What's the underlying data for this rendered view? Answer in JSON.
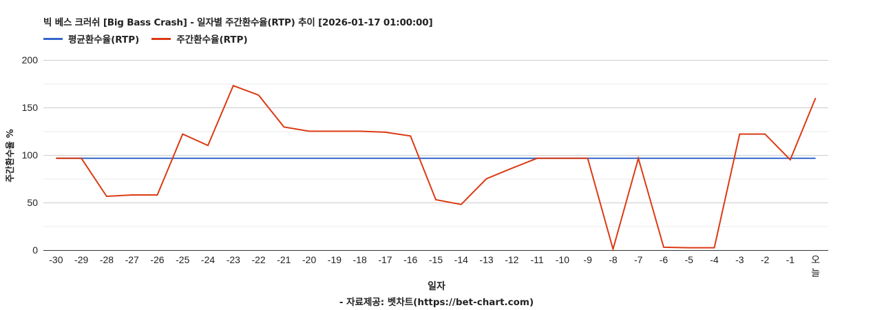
{
  "header": {
    "title": "빅 베스 크러쉬 [Big Bass Crash] - 일자별 주간환수율(RTP) 추이 [2026-01-17 01:00:00]"
  },
  "legend": [
    {
      "label": "평균환수율(RTP)",
      "color": "#3366cc"
    },
    {
      "label": "주간환수율(RTP)",
      "color": "#dc3912"
    }
  ],
  "axes": {
    "ylabel": "주간환수율 %",
    "xlabel": "일자",
    "yticks": [
      "0",
      "50",
      "100",
      "150",
      "200"
    ]
  },
  "footer": {
    "source": "- 자료제공: 벳차트(https://bet-chart.com)"
  },
  "chart_data": {
    "type": "line",
    "title": "빅 베스 크러쉬 [Big Bass Crash] - 일자별 주간환수율(RTP) 추이 [2026-01-17 01:00:00]",
    "xlabel": "일자",
    "ylabel": "주간환수율 %",
    "ylim": [
      0,
      200
    ],
    "yticks": [
      0,
      50,
      100,
      150,
      200
    ],
    "grid": true,
    "legend_position": "top-left",
    "categories": [
      "-30",
      "-29",
      "-28",
      "-27",
      "-26",
      "-25",
      "-24",
      "-23",
      "-22",
      "-21",
      "-20",
      "-19",
      "-18",
      "-17",
      "-16",
      "-15",
      "-14",
      "-13",
      "-12",
      "-11",
      "-10",
      "-9",
      "-8",
      "-7",
      "-6",
      "-5",
      "-4",
      "-3",
      "-2",
      "-1",
      "오늘"
    ],
    "series": [
      {
        "name": "평균환수율(RTP)",
        "color": "#3366cc",
        "values": [
          96.5,
          96.5,
          96.5,
          96.5,
          96.5,
          96.5,
          96.5,
          96.5,
          96.5,
          96.5,
          96.5,
          96.5,
          96.5,
          96.5,
          96.5,
          96.5,
          96.5,
          96.5,
          96.5,
          96.5,
          96.5,
          96.5,
          96.5,
          96.5,
          96.5,
          96.5,
          96.5,
          96.5,
          96.5,
          96.5,
          96.5
        ]
      },
      {
        "name": "주간환수율(RTP)",
        "color": "#dc3912",
        "values": [
          96.5,
          96.5,
          56.5,
          58,
          58,
          122,
          110,
          173,
          163,
          129.5,
          125,
          125,
          125,
          124,
          120,
          53,
          48,
          75,
          86,
          96.5,
          96.5,
          96.5,
          1,
          96.5,
          3,
          2.5,
          2.5,
          122,
          122,
          95,
          160
        ]
      }
    ]
  }
}
